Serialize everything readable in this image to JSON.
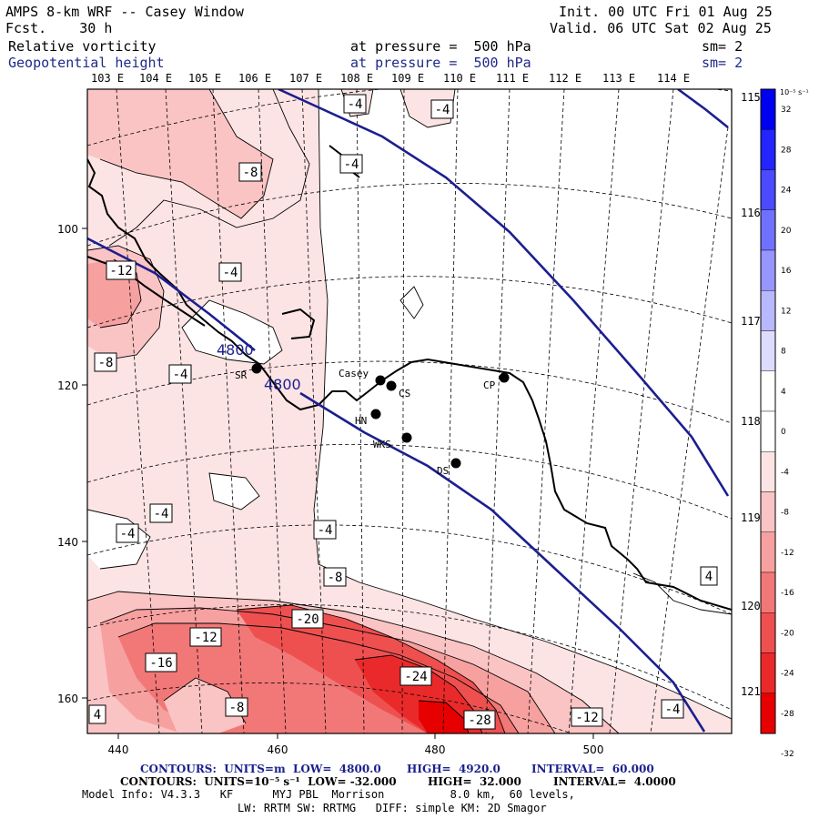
{
  "header": {
    "title": "AMPS 8-km WRF -- Casey Window",
    "forecast": "Fcst.    30 h",
    "init": "Init. 00 UTC Fri 01 Aug 25",
    "valid": "Valid. 06 UTC Sat 02 Aug 25",
    "field1": {
      "name": "Relative vorticity",
      "level": "at pressure =  500 hPa",
      "sm": "sm= 2"
    },
    "field2": {
      "name": "Geopotential height",
      "level": "at pressure =  500 hPa",
      "sm": "sm= 2"
    }
  },
  "colors": {
    "height_contour": "#1b1f8f",
    "shade_neg": [
      "#fde4e4",
      "#fbc4c4",
      "#f7a0a0",
      "#f27878",
      "#ee5050",
      "#ea2a2a",
      "#e60000"
    ],
    "shade_pos": [
      "#dcdcff",
      "#b8b8ff",
      "#9696ff",
      "#7070ff",
      "#4a4aff",
      "#2424ff",
      "#0000f0"
    ]
  },
  "top_lon_labels": [
    "103 E",
    "104 E",
    "105 E",
    "106 E",
    "107 E",
    "108 E",
    "109 E",
    "110 E",
    "111 E",
    "112 E",
    "113 E",
    "114 E"
  ],
  "right_lon_labels": [
    "115 E",
    "116 E",
    "117 E",
    "118 E",
    "119 E",
    "120 E",
    "121 E"
  ],
  "x_axis_ticks": [
    "440",
    "460",
    "480",
    "500"
  ],
  "y_axis_ticks": [
    "100",
    "120",
    "140",
    "160"
  ],
  "stations": [
    {
      "label": "SR"
    },
    {
      "label": "Casey"
    },
    {
      "label": "CS"
    },
    {
      "label": "CP"
    },
    {
      "label": "HN"
    },
    {
      "label": "WKS"
    },
    {
      "label": "DS"
    }
  ],
  "vorticity_labels": [
    "-4",
    "-4",
    "-8",
    "-4",
    "-12",
    "-4",
    "-8",
    "-4",
    "-4",
    "-4",
    "-4",
    "-8",
    "4",
    "-20",
    "-12",
    "-16",
    "-24",
    "-28",
    "-12",
    "-8",
    "-4",
    "4"
  ],
  "height_labels": [
    "4800",
    "4800"
  ],
  "colorbar": {
    "unit": "10⁻⁵ s⁻¹",
    "ticks": [
      "32",
      "28",
      "24",
      "20",
      "16",
      "12",
      "8",
      "4",
      "0",
      "-4",
      "-8",
      "-12",
      "-16",
      "-20",
      "-24",
      "-28",
      "-32"
    ]
  },
  "footer": {
    "line1": {
      "contours": "CONTOURS:  UNITS=m  LOW=  4800.0",
      "high": "HIGH=  4920.0",
      "interval": "INTERVAL=  60.000"
    },
    "line2": {
      "contours": "CONTOURS:  UNITS=10⁻⁵ s⁻¹  LOW= -32.000",
      "high": "HIGH=  32.000",
      "interval": "INTERVAL=  4.0000"
    },
    "line3": "Model Info: V4.3.3   KF      MYJ PBL  Morrison          8.0 km,  60 levels,",
    "line4": "LW: RRTM SW: RRTMG   DIFF: simple KM: 2D Smagor"
  }
}
